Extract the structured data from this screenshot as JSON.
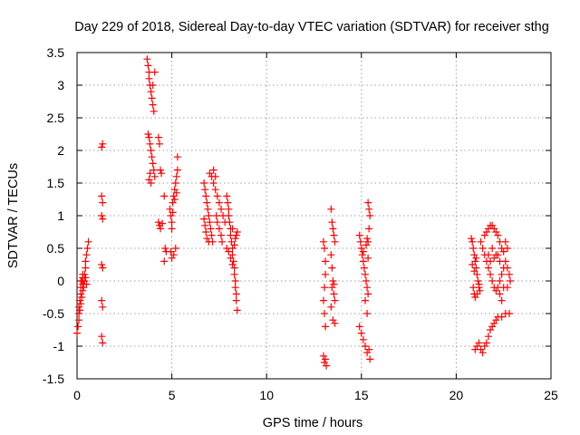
{
  "chart_data": {
    "type": "scatter",
    "title": "Day 229 of 2018, Sidereal Day-to-day VTEC variation (SDTVAR) for receiver sthg",
    "xlabel": "GPS time / hours",
    "ylabel": "SDTVAR / TECUs",
    "xlim": [
      0,
      25
    ],
    "ylim": [
      -1.5,
      3.5
    ],
    "xticks": [
      0,
      5,
      10,
      15,
      20,
      25
    ],
    "yticks": [
      -1.5,
      -1,
      -0.5,
      0,
      0.5,
      1,
      1.5,
      2,
      2.5,
      3,
      3.5
    ],
    "xtick_labels": [
      "0",
      "5",
      "10",
      "15",
      "20",
      "25"
    ],
    "ytick_labels": [
      "-1.5",
      "-1",
      "-0.5",
      "0",
      "0.5",
      "1",
      "1.5",
      "2",
      "2.5",
      "3",
      "3.5"
    ],
    "grid": true,
    "marker": "+",
    "color": "#ff0000",
    "series": [
      {
        "name": "SDTVAR",
        "points": [
          [
            0.0,
            -0.8
          ],
          [
            0.05,
            -0.7
          ],
          [
            0.1,
            -0.6
          ],
          [
            0.1,
            -0.5
          ],
          [
            0.15,
            -0.3
          ],
          [
            0.2,
            -0.2
          ],
          [
            0.2,
            -0.1
          ],
          [
            0.25,
            0.0
          ],
          [
            0.3,
            0.05
          ],
          [
            0.3,
            -0.05
          ],
          [
            0.35,
            -0.1
          ],
          [
            0.4,
            0.0
          ],
          [
            0.4,
            0.1
          ],
          [
            0.45,
            0.2
          ],
          [
            0.45,
            0.3
          ],
          [
            0.5,
            0.4
          ],
          [
            0.55,
            0.5
          ],
          [
            0.6,
            0.6
          ],
          [
            0.1,
            -0.4
          ],
          [
            0.15,
            -0.45
          ],
          [
            0.2,
            -0.35
          ],
          [
            0.25,
            -0.25
          ],
          [
            0.3,
            -0.15
          ],
          [
            0.35,
            -0.05
          ],
          [
            0.45,
            0.05
          ],
          [
            0.5,
            -0.05
          ],
          [
            0.2,
            0.0
          ],
          [
            0.3,
            0.1
          ],
          [
            1.3,
            2.05
          ],
          [
            1.35,
            2.1
          ],
          [
            1.3,
            1.3
          ],
          [
            1.35,
            1.2
          ],
          [
            1.3,
            1.0
          ],
          [
            1.35,
            0.95
          ],
          [
            1.3,
            0.25
          ],
          [
            1.35,
            0.2
          ],
          [
            1.3,
            -0.3
          ],
          [
            1.35,
            -0.4
          ],
          [
            1.3,
            -0.85
          ],
          [
            1.35,
            -0.95
          ],
          [
            3.7,
            3.4
          ],
          [
            3.75,
            3.3
          ],
          [
            3.8,
            3.2
          ],
          [
            3.8,
            3.1
          ],
          [
            3.85,
            3.0
          ],
          [
            3.9,
            2.9
          ],
          [
            3.95,
            2.8
          ],
          [
            4.0,
            2.7
          ],
          [
            4.05,
            2.6
          ],
          [
            4.1,
            3.2
          ],
          [
            4.0,
            3.0
          ],
          [
            3.75,
            2.25
          ],
          [
            3.8,
            2.2
          ],
          [
            3.85,
            2.1
          ],
          [
            3.9,
            2.0
          ],
          [
            3.95,
            1.9
          ],
          [
            4.0,
            1.8
          ],
          [
            4.05,
            1.7
          ],
          [
            4.1,
            1.6
          ],
          [
            3.8,
            1.55
          ],
          [
            3.85,
            1.65
          ],
          [
            3.9,
            1.5
          ],
          [
            4.3,
            2.2
          ],
          [
            4.35,
            2.1
          ],
          [
            4.4,
            1.7
          ],
          [
            4.45,
            1.65
          ],
          [
            4.3,
            0.9
          ],
          [
            4.35,
            0.85
          ],
          [
            4.4,
            0.8
          ],
          [
            4.5,
            0.88
          ],
          [
            4.6,
            1.3
          ],
          [
            4.65,
            0.5
          ],
          [
            4.6,
            0.3
          ],
          [
            4.7,
            0.45
          ],
          [
            4.9,
            1.1
          ],
          [
            4.95,
            1.0
          ],
          [
            5.0,
            0.9
          ],
          [
            5.0,
            0.8
          ],
          [
            5.05,
            1.2
          ],
          [
            5.1,
            1.3
          ],
          [
            5.15,
            1.4
          ],
          [
            5.2,
            1.5
          ],
          [
            5.25,
            1.6
          ],
          [
            5.3,
            1.7
          ],
          [
            5.3,
            1.9
          ],
          [
            4.95,
            0.45
          ],
          [
            5.0,
            0.35
          ],
          [
            5.1,
            0.4
          ],
          [
            5.2,
            0.5
          ],
          [
            5.05,
            1.05
          ],
          [
            5.15,
            1.25
          ],
          [
            5.25,
            1.35
          ],
          [
            6.7,
            1.5
          ],
          [
            6.75,
            1.4
          ],
          [
            6.8,
            1.3
          ],
          [
            6.85,
            1.2
          ],
          [
            6.9,
            1.1
          ],
          [
            6.95,
            1.0
          ],
          [
            7.0,
            0.9
          ],
          [
            7.05,
            0.8
          ],
          [
            7.1,
            0.7
          ],
          [
            7.15,
            0.6
          ],
          [
            6.7,
            0.95
          ],
          [
            6.75,
            0.85
          ],
          [
            6.8,
            0.75
          ],
          [
            6.85,
            0.65
          ],
          [
            6.95,
            0.6
          ],
          [
            7.1,
            1.6
          ],
          [
            7.2,
            1.5
          ],
          [
            7.3,
            1.4
          ],
          [
            7.4,
            1.3
          ],
          [
            7.5,
            1.2
          ],
          [
            7.6,
            1.1
          ],
          [
            7.7,
            1.0
          ],
          [
            7.8,
            0.9
          ],
          [
            7.0,
            1.65
          ],
          [
            7.2,
            1.7
          ],
          [
            7.3,
            1.6
          ],
          [
            7.35,
            1.0
          ],
          [
            7.4,
            0.9
          ],
          [
            7.5,
            0.8
          ],
          [
            7.6,
            0.7
          ],
          [
            7.65,
            0.6
          ],
          [
            7.9,
            1.3
          ],
          [
            7.95,
            1.2
          ],
          [
            8.0,
            1.1
          ],
          [
            8.0,
            1.0
          ],
          [
            8.05,
            0.9
          ],
          [
            8.1,
            0.8
          ],
          [
            8.1,
            0.7
          ],
          [
            8.15,
            0.6
          ],
          [
            8.2,
            0.5
          ],
          [
            8.2,
            0.4
          ],
          [
            8.25,
            0.3
          ],
          [
            8.3,
            0.2
          ],
          [
            8.3,
            0.1
          ],
          [
            8.35,
            0.0
          ],
          [
            8.35,
            -0.1
          ],
          [
            8.4,
            -0.2
          ],
          [
            8.4,
            -0.3
          ],
          [
            8.45,
            -0.45
          ],
          [
            7.9,
            0.5
          ],
          [
            8.0,
            0.45
          ],
          [
            8.1,
            0.35
          ],
          [
            8.2,
            0.25
          ],
          [
            8.3,
            0.55
          ],
          [
            8.4,
            0.7
          ],
          [
            8.45,
            0.75
          ],
          [
            8.35,
            0.65
          ],
          [
            8.2,
            0.8
          ],
          [
            13.0,
            0.6
          ],
          [
            13.05,
            0.5
          ],
          [
            13.1,
            0.3
          ],
          [
            13.1,
            0.1
          ],
          [
            13.05,
            -0.1
          ],
          [
            13.0,
            -0.3
          ],
          [
            13.05,
            -0.5
          ],
          [
            13.1,
            -0.7
          ],
          [
            13.0,
            -1.15
          ],
          [
            13.05,
            -1.25
          ],
          [
            13.1,
            -1.2
          ],
          [
            13.15,
            -1.3
          ],
          [
            13.4,
            1.1
          ],
          [
            13.45,
            0.9
          ],
          [
            13.5,
            0.8
          ],
          [
            13.55,
            0.7
          ],
          [
            13.6,
            0.6
          ],
          [
            13.4,
            0.4
          ],
          [
            13.45,
            0.2
          ],
          [
            13.5,
            0.0
          ],
          [
            13.55,
            -0.2
          ],
          [
            13.6,
            -0.3
          ],
          [
            13.4,
            -0.4
          ],
          [
            13.5,
            -0.6
          ],
          [
            13.6,
            -0.65
          ],
          [
            13.45,
            -0.1
          ],
          [
            13.55,
            -0.05
          ],
          [
            14.9,
            0.7
          ],
          [
            14.95,
            0.6
          ],
          [
            15.0,
            0.5
          ],
          [
            15.05,
            0.4
          ],
          [
            15.1,
            0.3
          ],
          [
            15.15,
            0.2
          ],
          [
            15.2,
            0.1
          ],
          [
            15.25,
            0.0
          ],
          [
            15.3,
            -0.1
          ],
          [
            15.35,
            -0.2
          ],
          [
            15.1,
            0.45
          ],
          [
            15.25,
            0.55
          ],
          [
            15.3,
            0.65
          ],
          [
            15.35,
            0.35
          ],
          [
            14.9,
            -0.7
          ],
          [
            15.0,
            -0.8
          ],
          [
            15.1,
            -0.9
          ],
          [
            15.2,
            -1.0
          ],
          [
            15.3,
            -1.1
          ],
          [
            15.4,
            -1.05
          ],
          [
            15.45,
            -1.2
          ],
          [
            15.35,
            1.2
          ],
          [
            15.4,
            1.1
          ],
          [
            15.45,
            1.0
          ],
          [
            15.4,
            0.8
          ],
          [
            15.35,
            0.6
          ],
          [
            15.2,
            -0.3
          ],
          [
            15.3,
            -0.5
          ],
          [
            20.8,
            0.65
          ],
          [
            20.85,
            0.6
          ],
          [
            20.9,
            0.5
          ],
          [
            20.95,
            0.4
          ],
          [
            21.0,
            0.3
          ],
          [
            21.05,
            0.2
          ],
          [
            21.1,
            0.1
          ],
          [
            21.15,
            0.0
          ],
          [
            21.2,
            -0.1
          ],
          [
            21.25,
            -0.15
          ],
          [
            20.9,
            -0.1
          ],
          [
            20.95,
            -0.2
          ],
          [
            21.0,
            -0.25
          ],
          [
            21.1,
            -0.2
          ],
          [
            21.2,
            -0.05
          ],
          [
            20.85,
            0.25
          ],
          [
            20.95,
            0.15
          ],
          [
            21.05,
            0.35
          ],
          [
            21.3,
            0.6
          ],
          [
            21.4,
            0.5
          ],
          [
            21.5,
            0.4
          ],
          [
            21.6,
            0.3
          ],
          [
            21.7,
            0.2
          ],
          [
            21.8,
            0.1
          ],
          [
            21.9,
            0.0
          ],
          [
            22.0,
            -0.1
          ],
          [
            22.1,
            -0.15
          ],
          [
            22.2,
            -0.1
          ],
          [
            22.3,
            0.0
          ],
          [
            22.4,
            0.1
          ],
          [
            22.5,
            0.2
          ],
          [
            22.6,
            0.3
          ],
          [
            22.7,
            0.2
          ],
          [
            22.8,
            0.1
          ],
          [
            22.85,
            0.0
          ],
          [
            22.7,
            -0.1
          ],
          [
            21.5,
            0.7
          ],
          [
            21.6,
            0.75
          ],
          [
            21.7,
            0.8
          ],
          [
            21.8,
            0.85
          ],
          [
            21.9,
            0.85
          ],
          [
            22.0,
            0.8
          ],
          [
            22.1,
            0.75
          ],
          [
            22.2,
            0.7
          ],
          [
            22.3,
            0.6
          ],
          [
            22.4,
            0.5
          ],
          [
            22.5,
            0.45
          ],
          [
            22.3,
            0.3
          ],
          [
            22.1,
            0.4
          ],
          [
            21.9,
            0.5
          ],
          [
            21.7,
            0.4
          ],
          [
            21.8,
            0.3
          ],
          [
            22.0,
            0.35
          ],
          [
            22.2,
            0.4
          ],
          [
            22.3,
            -0.2
          ],
          [
            22.4,
            -0.3
          ],
          [
            22.5,
            -0.1
          ],
          [
            22.6,
            0.6
          ],
          [
            22.7,
            0.5
          ],
          [
            21.0,
            -1.05
          ],
          [
            21.1,
            -1.0
          ],
          [
            21.2,
            -0.95
          ],
          [
            21.3,
            -1.05
          ],
          [
            21.4,
            -1.1
          ],
          [
            21.5,
            -1.0
          ],
          [
            21.6,
            -0.95
          ],
          [
            21.7,
            -0.85
          ],
          [
            21.8,
            -0.75
          ],
          [
            21.9,
            -0.7
          ],
          [
            22.0,
            -0.65
          ],
          [
            22.1,
            -0.6
          ],
          [
            22.2,
            -0.55
          ],
          [
            22.4,
            -0.55
          ],
          [
            22.6,
            -0.5
          ],
          [
            22.8,
            -0.5
          ]
        ]
      }
    ]
  }
}
